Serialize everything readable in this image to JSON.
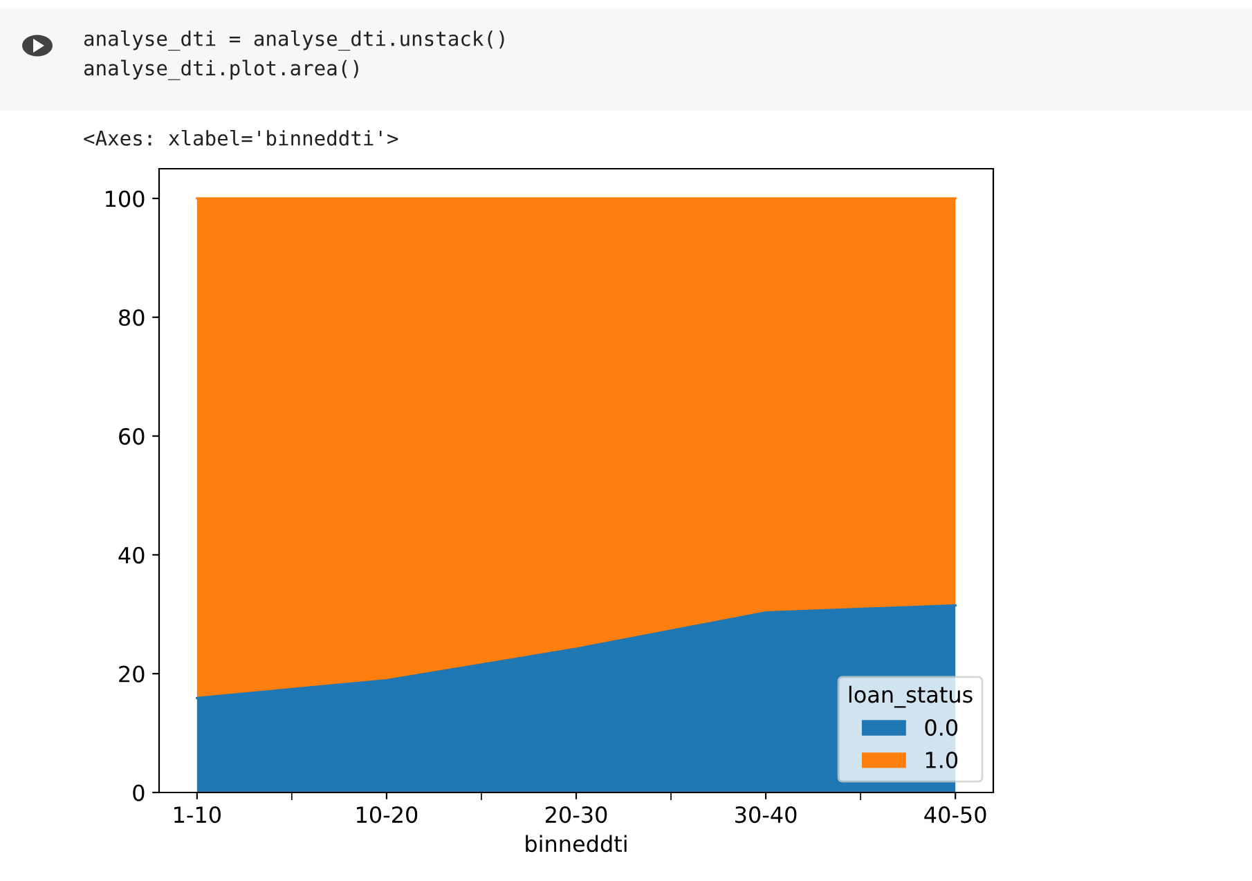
{
  "chart_data": {
    "type": "area",
    "stacked": true,
    "xlabel": "binneddti",
    "legend_title": "loan_status",
    "legend": "bottom right",
    "grid": false,
    "annotations": [
      "analyse_dti = analyse_dti.unstack()\nanalyse_dti.plot.area()",
      "<Axes: xlabel='binneddti'>"
    ],
    "categories": [
      "1-10",
      "10-20",
      "20-30",
      "30-40",
      "40-50"
    ],
    "series": [
      {
        "name": "0.0",
        "color": "#1f77b4",
        "values": [
          15.9,
          18.9,
          24.2,
          30.3,
          31.5
        ]
      },
      {
        "name": "1.0",
        "color": "#ff7f0e",
        "values": [
          84.1,
          81.1,
          75.8,
          69.7,
          68.5
        ]
      }
    ],
    "ylim": [
      0,
      105
    ],
    "yticks": [
      0,
      20,
      40,
      60,
      80,
      100
    ]
  }
}
